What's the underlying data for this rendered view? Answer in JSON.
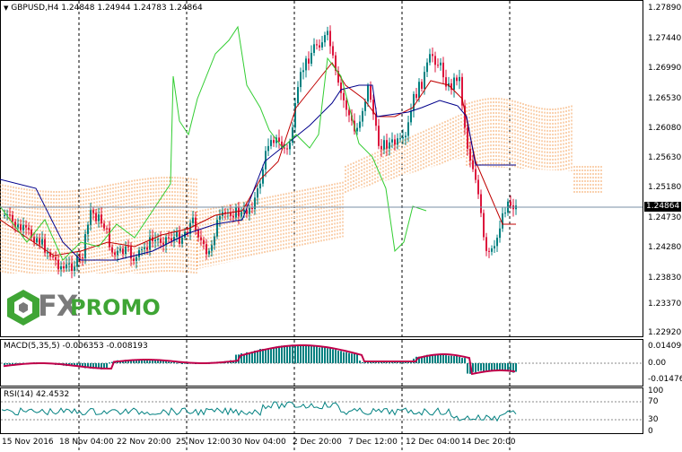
{
  "symbol_header": "GBPUSD,H4  1.24848 1.24944 1.24783 1.24864",
  "current_price": "1.24864",
  "price_axis": [
    "1.27890",
    "1.27440",
    "1.26990",
    "1.26530",
    "1.26080",
    "1.25630",
    "1.25180",
    "1.24730",
    "1.24280",
    "1.23830",
    "1.23370",
    "1.22920"
  ],
  "macd": {
    "header": "MACD(5,35,5) -0.006353 -0.008193",
    "axis": [
      "0.014096",
      "0.00",
      "-0.014767"
    ]
  },
  "rsi": {
    "header": "RSI(14) 42.4532",
    "axis": [
      "100",
      "70",
      "30",
      "0"
    ]
  },
  "time_axis": [
    "15 Nov 2016",
    "18 Nov 04:00",
    "22 Nov 20:00",
    "25 Nov 12:00",
    "30 Nov 04:00",
    "2 Dec 20:00",
    "7 Dec 12:00",
    "12 Dec 04:00",
    "14 Dec 20:00"
  ],
  "logo": {
    "fx": "FX",
    "promo": "PROMO"
  },
  "colors": {
    "bull": "#008080",
    "bear": "#dc143c",
    "tenkan": "#c00000",
    "kijun": "#00008b",
    "chikou": "#32cd32",
    "cloud": "#f4a460",
    "macd_signal": "#c0004a",
    "rsi_line": "#008080"
  }
}
